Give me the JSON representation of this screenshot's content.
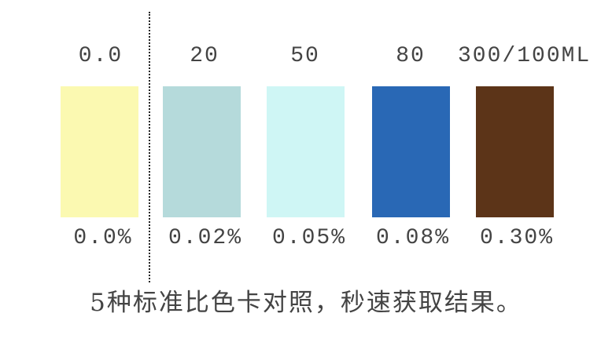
{
  "swatches": [
    {
      "label": "0.0",
      "percent": "0.0%",
      "color": "#fbf9b1"
    },
    {
      "label": "20",
      "percent": "0.02%",
      "color": "#b5dadb"
    },
    {
      "label": "50",
      "percent": "0.05%",
      "color": "#cff6f5"
    },
    {
      "label": "80",
      "percent": "0.08%",
      "color": "#2968b5"
    },
    {
      "label": "300/100ML",
      "percent": "0.30%",
      "color": "#5c3418"
    }
  ],
  "caption": "5种标准比色卡对照，秒速获取结果。"
}
